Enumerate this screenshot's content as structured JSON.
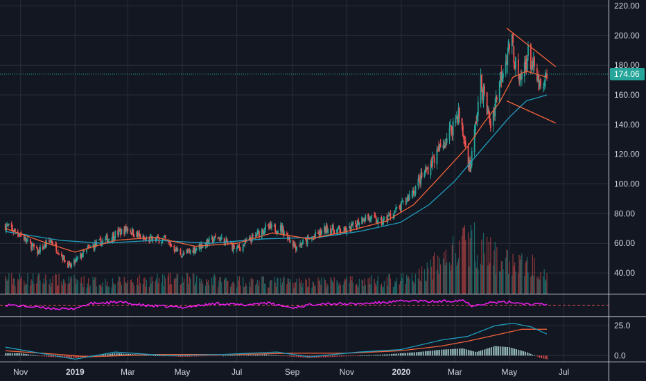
{
  "chart_data": [
    {
      "type": "candlestick",
      "panel": "price",
      "ylim": [
        26,
        224
      ],
      "y_ticks": [
        "40.00",
        "60.00",
        "80.00",
        "100.00",
        "120.00",
        "140.00",
        "160.00",
        "180.00",
        "200.00",
        "220.00"
      ],
      "y_tick_values": [
        40,
        60,
        80,
        100,
        120,
        140,
        160,
        180,
        200,
        220
      ],
      "last_price": 174.06,
      "last_price_label": "174.06",
      "grid": true,
      "colors": {
        "background": "#131722",
        "grid": "#2a2e39",
        "up": "#26a69a",
        "down": "#ef5350",
        "ma_fast": "#f4623a",
        "ma_slow": "#1f9fbf",
        "trendline": "#f4623a",
        "price_line": "#26a69a"
      },
      "close_series": [
        {
          "date": "2018-10-15",
          "value": 72
        },
        {
          "date": "2018-11-01",
          "value": 66
        },
        {
          "date": "2018-11-20",
          "value": 54
        },
        {
          "date": "2018-12-05",
          "value": 62
        },
        {
          "date": "2018-12-26",
          "value": 44
        },
        {
          "date": "2019-01-15",
          "value": 56
        },
        {
          "date": "2019-02-15",
          "value": 66
        },
        {
          "date": "2019-03-01",
          "value": 70
        },
        {
          "date": "2019-03-20",
          "value": 62
        },
        {
          "date": "2019-04-10",
          "value": 63
        },
        {
          "date": "2019-05-01",
          "value": 52
        },
        {
          "date": "2019-05-20",
          "value": 58
        },
        {
          "date": "2019-06-10",
          "value": 64
        },
        {
          "date": "2019-07-01",
          "value": 56
        },
        {
          "date": "2019-07-20",
          "value": 64
        },
        {
          "date": "2019-08-01",
          "value": 70
        },
        {
          "date": "2019-08-20",
          "value": 70
        },
        {
          "date": "2019-09-05",
          "value": 58
        },
        {
          "date": "2019-09-25",
          "value": 64
        },
        {
          "date": "2019-10-10",
          "value": 70
        },
        {
          "date": "2019-11-01",
          "value": 68
        },
        {
          "date": "2019-11-20",
          "value": 78
        },
        {
          "date": "2019-12-10",
          "value": 74
        },
        {
          "date": "2019-12-31",
          "value": 84
        },
        {
          "date": "2020-01-15",
          "value": 96
        },
        {
          "date": "2020-02-01",
          "value": 112
        },
        {
          "date": "2020-02-20",
          "value": 130
        },
        {
          "date": "2020-03-05",
          "value": 148
        },
        {
          "date": "2020-03-18",
          "value": 110
        },
        {
          "date": "2020-03-30",
          "value": 168
        },
        {
          "date": "2020-04-10",
          "value": 140
        },
        {
          "date": "2020-04-22",
          "value": 175
        },
        {
          "date": "2020-05-03",
          "value": 198
        },
        {
          "date": "2020-05-12",
          "value": 166
        },
        {
          "date": "2020-05-22",
          "value": 188
        },
        {
          "date": "2020-06-01",
          "value": 170
        },
        {
          "date": "2020-06-07",
          "value": 160
        },
        {
          "date": "2020-06-12",
          "value": 174
        }
      ],
      "ma_fast_series": [
        {
          "date": "2018-10-15",
          "value": 70
        },
        {
          "date": "2018-12-01",
          "value": 60
        },
        {
          "date": "2019-01-01",
          "value": 54
        },
        {
          "date": "2019-02-15",
          "value": 62
        },
        {
          "date": "2019-04-01",
          "value": 64
        },
        {
          "date": "2019-05-15",
          "value": 58
        },
        {
          "date": "2019-07-01",
          "value": 60
        },
        {
          "date": "2019-08-10",
          "value": 67
        },
        {
          "date": "2019-09-20",
          "value": 63
        },
        {
          "date": "2019-11-01",
          "value": 68
        },
        {
          "date": "2019-12-15",
          "value": 75
        },
        {
          "date": "2020-01-15",
          "value": 86
        },
        {
          "date": "2020-02-15",
          "value": 106
        },
        {
          "date": "2020-03-15",
          "value": 125
        },
        {
          "date": "2020-04-01",
          "value": 140
        },
        {
          "date": "2020-04-20",
          "value": 155
        },
        {
          "date": "2020-05-05",
          "value": 172
        },
        {
          "date": "2020-05-20",
          "value": 176
        },
        {
          "date": "2020-06-12",
          "value": 172
        }
      ],
      "ma_slow_series": [
        {
          "date": "2018-10-15",
          "value": 68
        },
        {
          "date": "2018-12-15",
          "value": 62
        },
        {
          "date": "2019-02-01",
          "value": 60
        },
        {
          "date": "2019-04-01",
          "value": 62
        },
        {
          "date": "2019-06-01",
          "value": 60
        },
        {
          "date": "2019-08-01",
          "value": 63
        },
        {
          "date": "2019-10-01",
          "value": 64
        },
        {
          "date": "2019-11-15",
          "value": 68
        },
        {
          "date": "2019-12-31",
          "value": 74
        },
        {
          "date": "2020-02-01",
          "value": 86
        },
        {
          "date": "2020-03-01",
          "value": 102
        },
        {
          "date": "2020-04-01",
          "value": 124
        },
        {
          "date": "2020-05-01",
          "value": 145
        },
        {
          "date": "2020-05-20",
          "value": 156
        },
        {
          "date": "2020-06-12",
          "value": 160
        }
      ],
      "trendlines": [
        {
          "from": {
            "date": "2020-04-28",
            "value": 205
          },
          "to": {
            "date": "2020-06-22",
            "value": 179
          }
        },
        {
          "from": {
            "date": "2020-04-28",
            "value": 156
          },
          "to": {
            "date": "2020-06-22",
            "value": 141
          }
        }
      ],
      "volume_series": [
        {
          "date": "2018-11-15",
          "value": 5
        },
        {
          "date": "2019-02-01",
          "value": 4
        },
        {
          "date": "2019-05-01",
          "value": 5
        },
        {
          "date": "2019-08-01",
          "value": 4
        },
        {
          "date": "2019-11-01",
          "value": 4
        },
        {
          "date": "2020-01-15",
          "value": 5
        },
        {
          "date": "2020-03-01",
          "value": 14
        },
        {
          "date": "2020-03-20",
          "value": 18
        },
        {
          "date": "2020-04-15",
          "value": 12
        },
        {
          "date": "2020-05-10",
          "value": 10
        },
        {
          "date": "2020-06-12",
          "value": 9
        }
      ]
    },
    {
      "type": "line",
      "panel": "oscillator",
      "ylim": [
        0,
        100
      ],
      "reference_level": 50,
      "colors": {
        "line": "#e91ee9",
        "reference": "#ef5350"
      },
      "series": [
        {
          "date": "2018-10-15",
          "value": 52
        },
        {
          "date": "2018-11-20",
          "value": 40
        },
        {
          "date": "2018-12-26",
          "value": 30
        },
        {
          "date": "2019-01-20",
          "value": 58
        },
        {
          "date": "2019-02-20",
          "value": 64
        },
        {
          "date": "2019-03-20",
          "value": 48
        },
        {
          "date": "2019-05-01",
          "value": 40
        },
        {
          "date": "2019-06-10",
          "value": 58
        },
        {
          "date": "2019-07-10",
          "value": 50
        },
        {
          "date": "2019-08-01",
          "value": 62
        },
        {
          "date": "2019-09-01",
          "value": 38
        },
        {
          "date": "2019-10-01",
          "value": 58
        },
        {
          "date": "2019-11-10",
          "value": 55
        },
        {
          "date": "2019-12-10",
          "value": 62
        },
        {
          "date": "2020-01-10",
          "value": 70
        },
        {
          "date": "2020-02-10",
          "value": 66
        },
        {
          "date": "2020-03-10",
          "value": 74
        },
        {
          "date": "2020-03-20",
          "value": 48
        },
        {
          "date": "2020-04-10",
          "value": 62
        },
        {
          "date": "2020-05-05",
          "value": 64
        },
        {
          "date": "2020-05-20",
          "value": 56
        },
        {
          "date": "2020-06-12",
          "value": 52
        }
      ]
    },
    {
      "type": "macd",
      "panel": "macd",
      "ylim": [
        -5,
        32
      ],
      "y_ticks": [
        "25.0",
        "0.0"
      ],
      "y_tick_values": [
        25,
        0
      ],
      "colors": {
        "macd": "#1f9fbf",
        "signal": "#f4623a",
        "hist_up": "#b2dfdb",
        "hist_down": "#ef5350"
      },
      "macd_series": [
        {
          "date": "2018-10-15",
          "value": 7
        },
        {
          "date": "2018-12-01",
          "value": 1
        },
        {
          "date": "2019-01-01",
          "value": -3
        },
        {
          "date": "2019-02-15",
          "value": 3
        },
        {
          "date": "2019-04-15",
          "value": 0
        },
        {
          "date": "2019-06-15",
          "value": 1
        },
        {
          "date": "2019-08-15",
          "value": 3
        },
        {
          "date": "2019-09-20",
          "value": -1
        },
        {
          "date": "2019-11-15",
          "value": 3
        },
        {
          "date": "2019-12-31",
          "value": 5
        },
        {
          "date": "2020-02-15",
          "value": 13
        },
        {
          "date": "2020-03-15",
          "value": 16
        },
        {
          "date": "2020-04-15",
          "value": 25
        },
        {
          "date": "2020-05-05",
          "value": 27
        },
        {
          "date": "2020-05-25",
          "value": 24
        },
        {
          "date": "2020-06-12",
          "value": 18
        }
      ],
      "signal_series": [
        {
          "date": "2018-10-15",
          "value": 4
        },
        {
          "date": "2018-12-15",
          "value": 1
        },
        {
          "date": "2019-01-15",
          "value": -1
        },
        {
          "date": "2019-04-01",
          "value": 1
        },
        {
          "date": "2019-07-01",
          "value": 1
        },
        {
          "date": "2019-09-01",
          "value": 2
        },
        {
          "date": "2019-11-01",
          "value": 2
        },
        {
          "date": "2019-12-31",
          "value": 4
        },
        {
          "date": "2020-02-15",
          "value": 8
        },
        {
          "date": "2020-03-15",
          "value": 12
        },
        {
          "date": "2020-04-15",
          "value": 17
        },
        {
          "date": "2020-05-15",
          "value": 22
        },
        {
          "date": "2020-06-12",
          "value": 22
        }
      ],
      "histogram_series": [
        {
          "date": "2018-11-01",
          "value": 2
        },
        {
          "date": "2018-12-01",
          "value": -1
        },
        {
          "date": "2019-01-01",
          "value": -2
        },
        {
          "date": "2019-02-15",
          "value": 2
        },
        {
          "date": "2019-05-01",
          "value": -1
        },
        {
          "date": "2019-08-01",
          "value": 1
        },
        {
          "date": "2019-09-20",
          "value": -2
        },
        {
          "date": "2019-12-15",
          "value": 1
        },
        {
          "date": "2020-01-20",
          "value": 3
        },
        {
          "date": "2020-02-15",
          "value": 5
        },
        {
          "date": "2020-03-10",
          "value": 6
        },
        {
          "date": "2020-03-25",
          "value": 3
        },
        {
          "date": "2020-04-15",
          "value": 8
        },
        {
          "date": "2020-05-01",
          "value": 7
        },
        {
          "date": "2020-05-20",
          "value": 3
        },
        {
          "date": "2020-06-05",
          "value": -2
        },
        {
          "date": "2020-06-12",
          "value": -3
        }
      ]
    }
  ],
  "x_axis": {
    "ticks": [
      {
        "label": "Nov",
        "date": "2018-11-01",
        "bold": false
      },
      {
        "label": "2019",
        "date": "2019-01-01",
        "bold": true
      },
      {
        "label": "Mar",
        "date": "2019-03-01",
        "bold": false
      },
      {
        "label": "May",
        "date": "2019-05-01",
        "bold": false
      },
      {
        "label": "Jul",
        "date": "2019-07-01",
        "bold": false
      },
      {
        "label": "Sep",
        "date": "2019-09-01",
        "bold": false
      },
      {
        "label": "Nov",
        "date": "2019-11-01",
        "bold": false
      },
      {
        "label": "2020",
        "date": "2020-01-01",
        "bold": true
      },
      {
        "label": "Mar",
        "date": "2020-03-01",
        "bold": false
      },
      {
        "label": "May",
        "date": "2020-05-01",
        "bold": false
      },
      {
        "label": "Jul",
        "date": "2020-07-01",
        "bold": false
      }
    ]
  }
}
